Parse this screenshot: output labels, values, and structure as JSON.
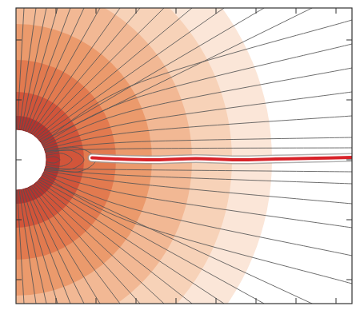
{
  "chart_data": {
    "type": "contour",
    "tick_labels": false,
    "xlim": [
      0,
      8.4
    ],
    "ylim": [
      -3.6,
      3.8
    ],
    "xticks": [
      1,
      2,
      3,
      4,
      5,
      6,
      7,
      8
    ],
    "yticks": [
      -3,
      -1.5,
      0,
      1.5,
      3
    ],
    "body_radius": 0.76,
    "bands": {
      "outer_radius": [
        6.4,
        5.4,
        4.4,
        3.4,
        2.5,
        1.7,
        1.1
      ],
      "colors": [
        "#fbe6d8",
        "#f7d2b8",
        "#f2b894",
        "#eb9a6c",
        "#e27a4f",
        "#d2553a",
        "#b5342e"
      ]
    },
    "field_lines": {
      "color": "#555555",
      "lines": [
        {
          "x": [
            0.03,
            0.2
          ],
          "y": [
            0.76,
            3.8
          ]
        },
        {
          "x": [
            0.08,
            0.5
          ],
          "y": [
            0.76,
            3.8
          ]
        },
        {
          "x": [
            0.13,
            0.76
          ],
          "y": [
            0.75,
            3.8
          ]
        },
        {
          "x": [
            0.18,
            1.04
          ],
          "y": [
            0.74,
            3.8
          ]
        },
        {
          "x": [
            0.23,
            1.36
          ],
          "y": [
            0.72,
            3.8
          ]
        },
        {
          "x": [
            0.28,
            1.7
          ],
          "y": [
            0.7,
            3.8
          ]
        },
        {
          "x": [
            0.33,
            2.1
          ],
          "y": [
            0.68,
            3.8
          ]
        },
        {
          "x": [
            0.38,
            2.6
          ],
          "y": [
            0.66,
            3.8
          ]
        },
        {
          "x": [
            0.42,
            3.1
          ],
          "y": [
            0.63,
            3.8
          ]
        },
        {
          "x": [
            0.47,
            3.7
          ],
          "y": [
            0.6,
            3.8
          ]
        },
        {
          "x": [
            0.51,
            4.4
          ],
          "y": [
            0.56,
            3.8
          ]
        },
        {
          "x": [
            0.55,
            5.2
          ],
          "y": [
            0.53,
            3.8
          ]
        },
        {
          "x": [
            0.58,
            6.2
          ],
          "y": [
            0.49,
            3.8
          ]
        },
        {
          "x": [
            0.61,
            7.4
          ],
          "y": [
            0.45,
            3.8
          ]
        },
        {
          "x": [
            0.64,
            3.0,
            8.4
          ],
          "y": [
            0.41,
            1.9,
            3.5
          ]
        },
        {
          "x": [
            0.66,
            3.0,
            8.4
          ],
          "y": [
            0.38,
            1.55,
            2.9
          ]
        },
        {
          "x": [
            0.68,
            3.0,
            8.4
          ],
          "y": [
            0.35,
            1.25,
            2.3
          ]
        },
        {
          "x": [
            0.69,
            3.0,
            8.4
          ],
          "y": [
            0.31,
            0.95,
            1.7
          ]
        },
        {
          "x": [
            0.71,
            3.0,
            8.4
          ],
          "y": [
            0.27,
            0.7,
            1.1
          ]
        },
        {
          "x": [
            0.72,
            3.0,
            8.4
          ],
          "y": [
            0.25,
            0.45,
            0.56
          ]
        },
        {
          "x": [
            0.73,
            3.0,
            8.4
          ],
          "y": [
            0.22,
            0.28,
            0.3
          ]
        },
        {
          "x": [
            0.76,
            0.95,
            1.1,
            0.95,
            0.76
          ],
          "y": [
            0.05,
            0.08,
            0,
            -0.08,
            -0.05
          ]
        },
        {
          "x": [
            0.75,
            1.15,
            1.4,
            1.15,
            0.75
          ],
          "y": [
            0.11,
            0.16,
            0,
            -0.16,
            -0.11
          ]
        },
        {
          "x": [
            0.74,
            1.35,
            1.7,
            1.35,
            0.74
          ],
          "y": [
            0.16,
            0.24,
            0,
            -0.24,
            -0.16
          ]
        },
        {
          "x": [
            0.73,
            1.55,
            2.0,
            1.55,
            0.73
          ],
          "y": [
            0.2,
            0.3,
            0,
            -0.3,
            -0.2
          ]
        },
        {
          "x": [
            0.73,
            3.0,
            8.4
          ],
          "y": [
            -0.22,
            -0.25,
            -0.3
          ]
        },
        {
          "x": [
            0.72,
            3.0,
            8.4
          ],
          "y": [
            -0.25,
            -0.4,
            -0.6
          ]
        },
        {
          "x": [
            0.71,
            3.0,
            8.4
          ],
          "y": [
            -0.27,
            -0.6,
            -1.1
          ]
        },
        {
          "x": [
            0.69,
            3.0,
            8.4
          ],
          "y": [
            -0.31,
            -0.9,
            -1.7
          ]
        },
        {
          "x": [
            0.68,
            3.0,
            8.4
          ],
          "y": [
            -0.35,
            -1.25,
            -2.4
          ]
        },
        {
          "x": [
            0.66,
            3.0,
            8.4
          ],
          "y": [
            -0.38,
            -1.6,
            -3.1
          ]
        },
        {
          "x": [
            0.61,
            7.4
          ],
          "y": [
            -0.45,
            -3.6
          ]
        },
        {
          "x": [
            0.58,
            6.2
          ],
          "y": [
            -0.49,
            -3.6
          ]
        },
        {
          "x": [
            0.55,
            5.2
          ],
          "y": [
            -0.53,
            -3.6
          ]
        },
        {
          "x": [
            0.51,
            4.4
          ],
          "y": [
            -0.56,
            -3.6
          ]
        },
        {
          "x": [
            0.47,
            3.7
          ],
          "y": [
            -0.6,
            -3.6
          ]
        },
        {
          "x": [
            0.42,
            3.1
          ],
          "y": [
            -0.63,
            -3.6
          ]
        },
        {
          "x": [
            0.38,
            2.6
          ],
          "y": [
            -0.66,
            -3.6
          ]
        },
        {
          "x": [
            0.33,
            2.1
          ],
          "y": [
            -0.68,
            -3.6
          ]
        },
        {
          "x": [
            0.28,
            1.7
          ],
          "y": [
            -0.7,
            -3.6
          ]
        },
        {
          "x": [
            0.23,
            1.36
          ],
          "y": [
            -0.72,
            -3.6
          ]
        },
        {
          "x": [
            0.18,
            1.04
          ],
          "y": [
            -0.74,
            -3.6
          ]
        },
        {
          "x": [
            0.13,
            0.76
          ],
          "y": [
            -0.75,
            -3.6
          ]
        },
        {
          "x": [
            0.08,
            0.5
          ],
          "y": [
            -0.76,
            -3.6
          ]
        },
        {
          "x": [
            0.03,
            0.2
          ],
          "y": [
            -0.76,
            -3.6
          ]
        }
      ]
    },
    "current_sheet": {
      "color": "#d8232a",
      "x": [
        1.9,
        2.5,
        3.5,
        4.5,
        5.5,
        6.5,
        7.5,
        8.4
      ],
      "y": [
        0.05,
        0.02,
        0.0,
        0.03,
        0.0,
        0.02,
        0.04,
        0.06
      ]
    }
  }
}
